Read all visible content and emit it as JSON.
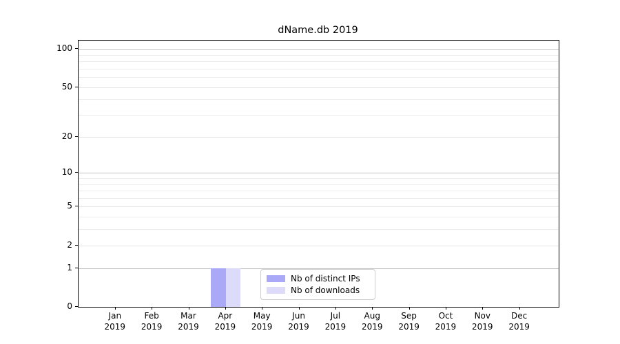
{
  "chart_data": {
    "type": "bar",
    "title": "dName.db 2019",
    "categories": [
      "Jan",
      "Feb",
      "Mar",
      "Apr",
      "May",
      "Jun",
      "Jul",
      "Aug",
      "Sep",
      "Oct",
      "Nov",
      "Dec"
    ],
    "tick_year": "2019",
    "series": [
      {
        "name": "Nb of distinct IPs",
        "color": "#a9a9f7",
        "values": [
          0,
          0,
          0,
          1,
          0,
          0,
          0,
          0,
          0,
          0,
          0,
          0
        ]
      },
      {
        "name": "Nb of downloads",
        "color": "#dcdcfa",
        "values": [
          0,
          0,
          0,
          1,
          0,
          0,
          0,
          0,
          0,
          0,
          0,
          0
        ]
      }
    ],
    "xlabel": "",
    "ylabel": "",
    "yscale": "log1p",
    "ylim": [
      0,
      116
    ],
    "yticks": [
      0,
      1,
      2,
      5,
      10,
      20,
      50,
      100
    ],
    "minor_gridlines": [
      3,
      4,
      6,
      7,
      8,
      9,
      30,
      40,
      60,
      70,
      80,
      90
    ],
    "grid": true,
    "legend_position": "lower center"
  }
}
